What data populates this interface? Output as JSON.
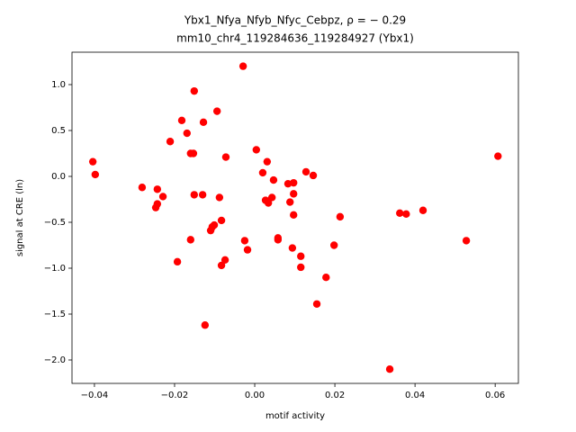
{
  "chart_data": {
    "type": "scatter",
    "title": "Ybx1_Nfya_Nfyb_Nfyc_Cebpz, ρ = − 0.29",
    "subtitle": "mm10_chr4_119284636_119284927 (Ybx1)",
    "x_label": "motif activity",
    "y_label": "signal at CRE (ln)",
    "color": "#ff0000",
    "xlim": [
      -0.0456,
      0.0658
    ],
    "ylim": [
      -2.255,
      1.353
    ],
    "xticks": [
      {
        "value": -0.04,
        "label": "−0.04"
      },
      {
        "value": -0.02,
        "label": "−0.02"
      },
      {
        "value": 0,
        "label": "0.00"
      },
      {
        "value": 0.02,
        "label": "0.02"
      },
      {
        "value": 0.04,
        "label": "0.04"
      },
      {
        "value": 0.06,
        "label": "0.06"
      }
    ],
    "yticks": [
      {
        "value": -2,
        "label": "−2.0"
      },
      {
        "value": -1.5,
        "label": "−1.5"
      },
      {
        "value": -1,
        "label": "−1.0"
      },
      {
        "value": -0.5,
        "label": "−0.5"
      },
      {
        "value": 0,
        "label": "0.0"
      },
      {
        "value": 0.5,
        "label": "0.5"
      },
      {
        "value": 1,
        "label": "1.0"
      }
    ],
    "x": [
      -0.0404,
      -0.0398,
      -0.0281,
      -0.0243,
      -0.0229,
      -0.0243,
      -0.0247,
      -0.0211,
      -0.0193,
      -0.0182,
      -0.0169,
      -0.016,
      -0.0153,
      -0.0151,
      -0.016,
      -0.0151,
      -0.013,
      -0.0128,
      -0.0124,
      -0.011,
      -0.0106,
      -0.0101,
      -0.0094,
      -0.0088,
      -0.0083,
      -0.0083,
      -0.0074,
      -0.0072,
      -0.0029,
      -0.0025,
      -0.0018,
      0.0004,
      0.002,
      0.0027,
      0.0031,
      0.0034,
      0.0043,
      0.0047,
      0.0058,
      0.0058,
      0.0083,
      0.0088,
      0.0097,
      0.0097,
      0.0097,
      0.0094,
      0.0115,
      0.0115,
      0.0128,
      0.0146,
      0.0155,
      0.0178,
      0.0198,
      0.0213,
      0.0337,
      0.0362,
      0.0378,
      0.042,
      0.0528,
      0.0607
    ],
    "values": [
      0.16,
      0.02,
      -0.12,
      -0.14,
      -0.22,
      -0.3,
      -0.34,
      0.38,
      -0.93,
      0.61,
      0.47,
      0.25,
      0.25,
      0.93,
      -0.69,
      -0.2,
      -0.2,
      0.59,
      -1.62,
      -0.59,
      -0.55,
      -0.53,
      0.71,
      -0.23,
      -0.48,
      -0.97,
      -0.91,
      0.21,
      1.2,
      -0.7,
      -0.8,
      0.29,
      0.04,
      -0.26,
      0.16,
      -0.29,
      -0.23,
      -0.04,
      -0.67,
      -0.69,
      -0.08,
      -0.28,
      -0.07,
      -0.19,
      -0.42,
      -0.78,
      -0.87,
      -0.99,
      0.05,
      0.01,
      -1.39,
      -1.1,
      -0.75,
      -0.44,
      -2.1,
      -0.4,
      -0.41,
      -0.37,
      -0.7,
      0.22
    ]
  }
}
